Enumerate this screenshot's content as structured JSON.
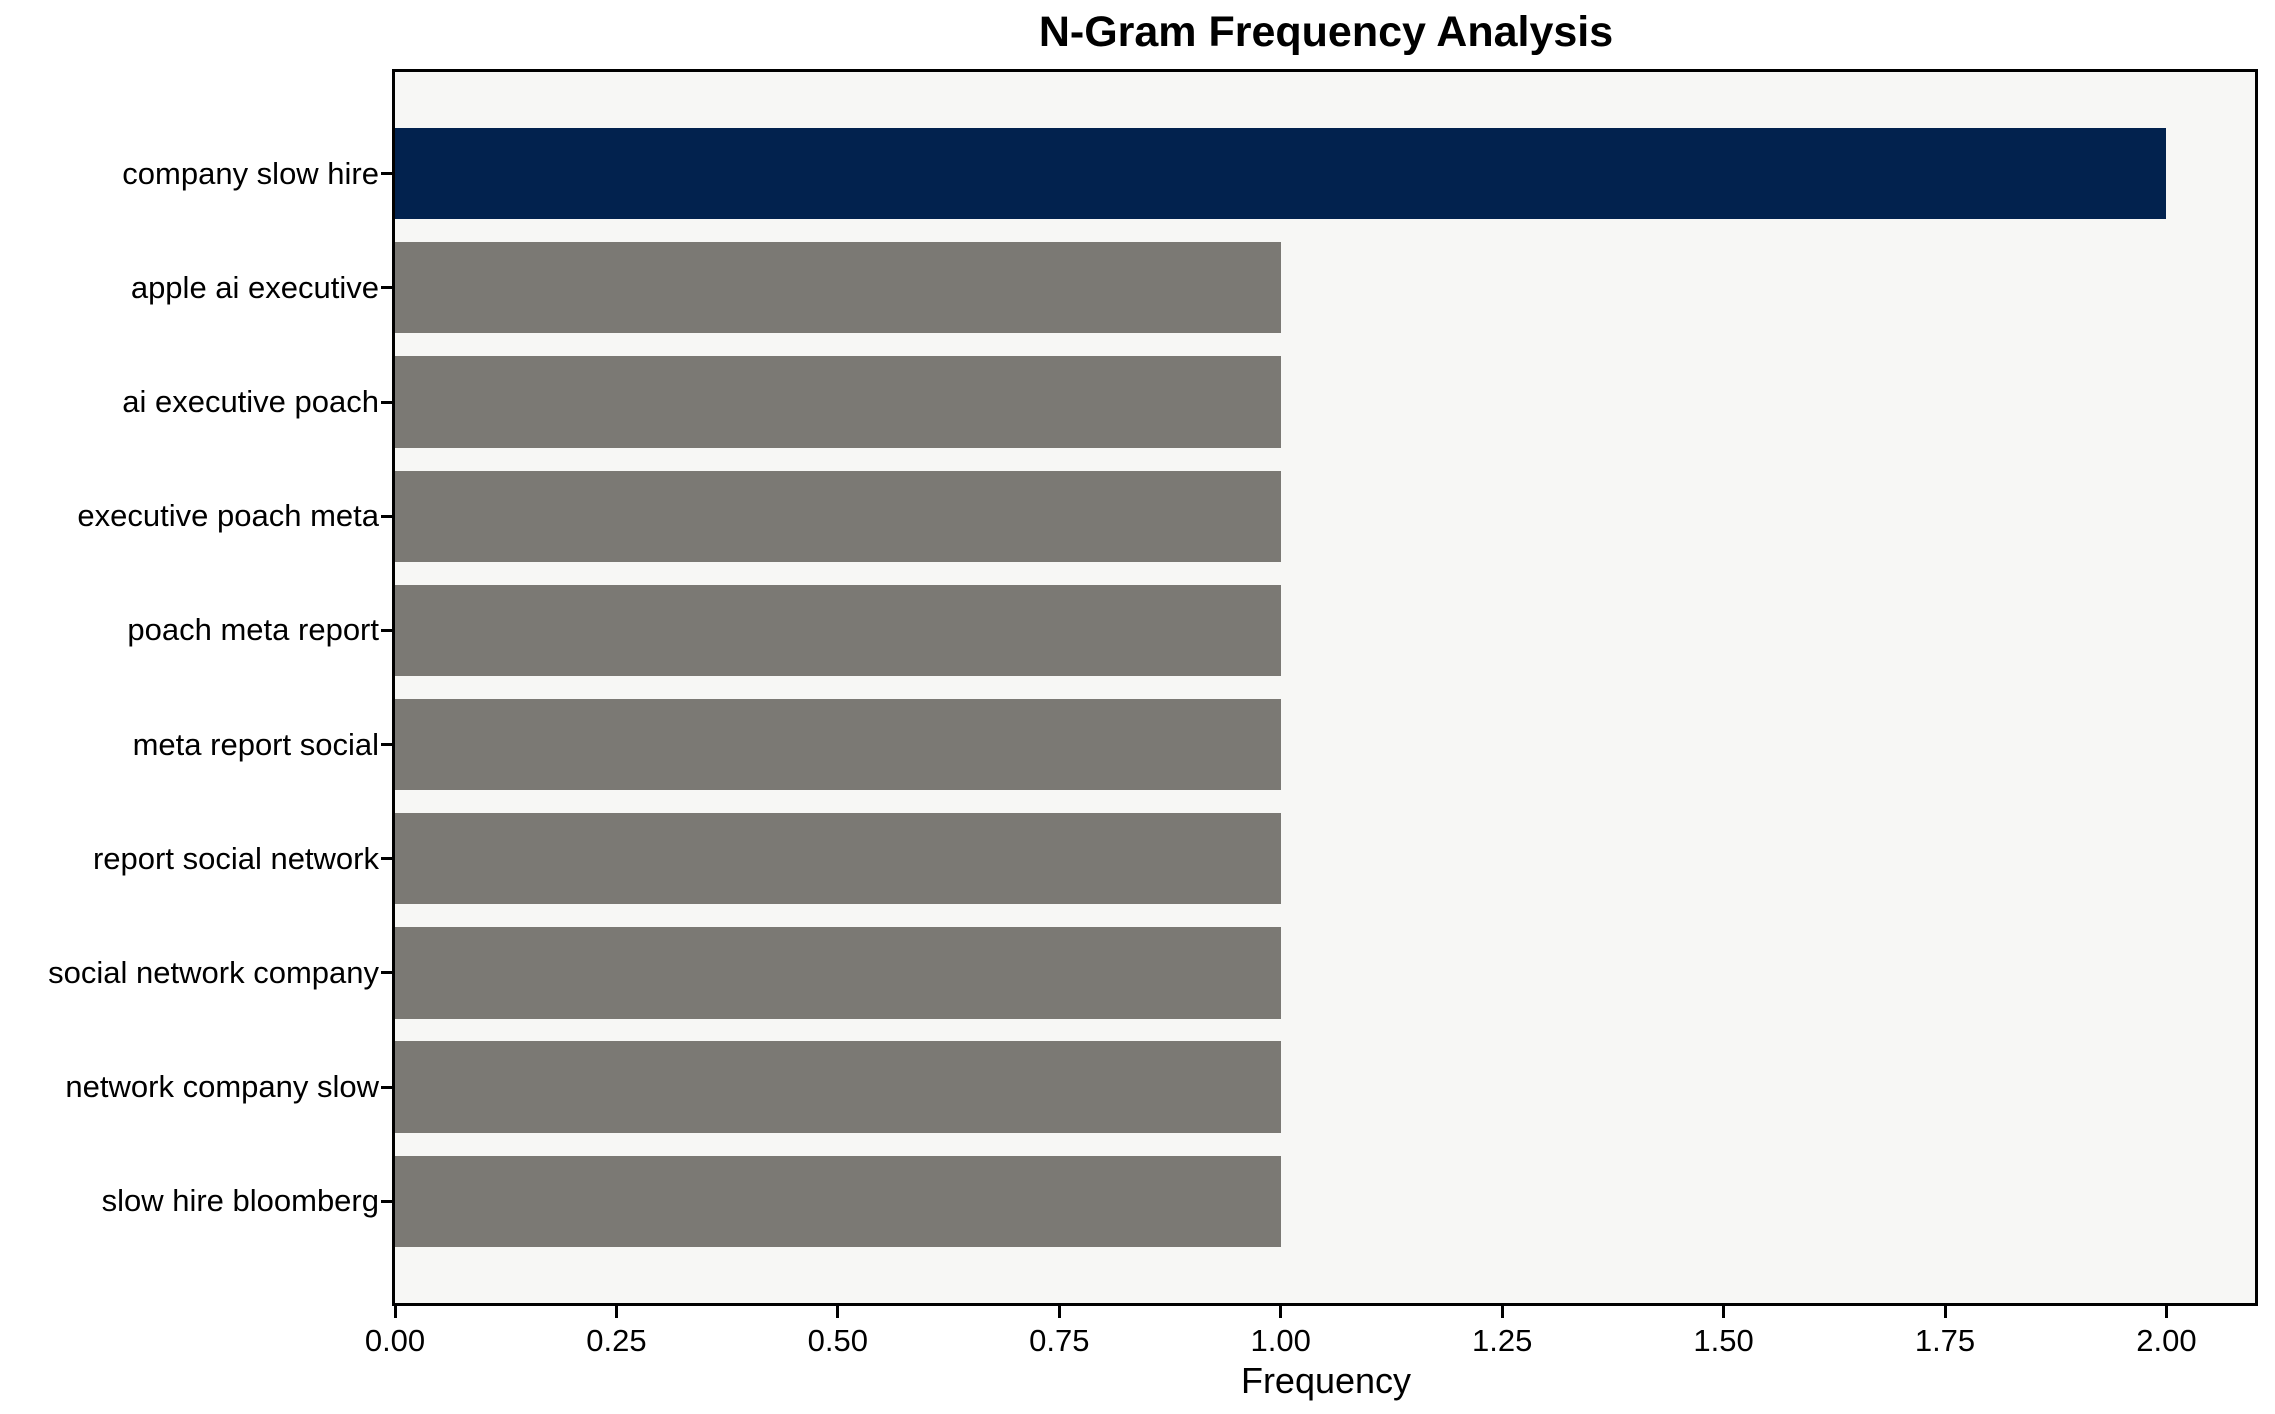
{
  "chart_data": {
    "type": "bar",
    "orientation": "horizontal",
    "title": "N-Gram Frequency Analysis",
    "xlabel": "Frequency",
    "ylabel": "",
    "categories": [
      "company slow hire",
      "apple ai executive",
      "ai executive poach",
      "executive poach meta",
      "poach meta report",
      "meta report social",
      "report social network",
      "social network company",
      "network company slow",
      "slow hire bloomberg"
    ],
    "values": [
      2,
      1,
      1,
      1,
      1,
      1,
      1,
      1,
      1,
      1
    ],
    "bar_colors": [
      "#02224e",
      "#7b7974",
      "#7b7974",
      "#7b7974",
      "#7b7974",
      "#7b7974",
      "#7b7974",
      "#7b7974",
      "#7b7974",
      "#7b7974"
    ],
    "xlim": [
      0,
      2.1
    ],
    "xtick_values": [
      0,
      0.25,
      0.5,
      0.75,
      1.0,
      1.25,
      1.5,
      1.75,
      2.0
    ],
    "xtick_labels": [
      "0.00",
      "0.25",
      "0.50",
      "0.75",
      "1.00",
      "1.25",
      "1.50",
      "1.75",
      "2.00"
    ],
    "grid": false,
    "legend": null,
    "colors": {
      "highlight_bar": "#02224e",
      "default_bar": "#7b7974",
      "plot_background": "#f7f7f5",
      "figure_background": "#ffffff",
      "spine": "#000000",
      "text": "#000000"
    }
  }
}
